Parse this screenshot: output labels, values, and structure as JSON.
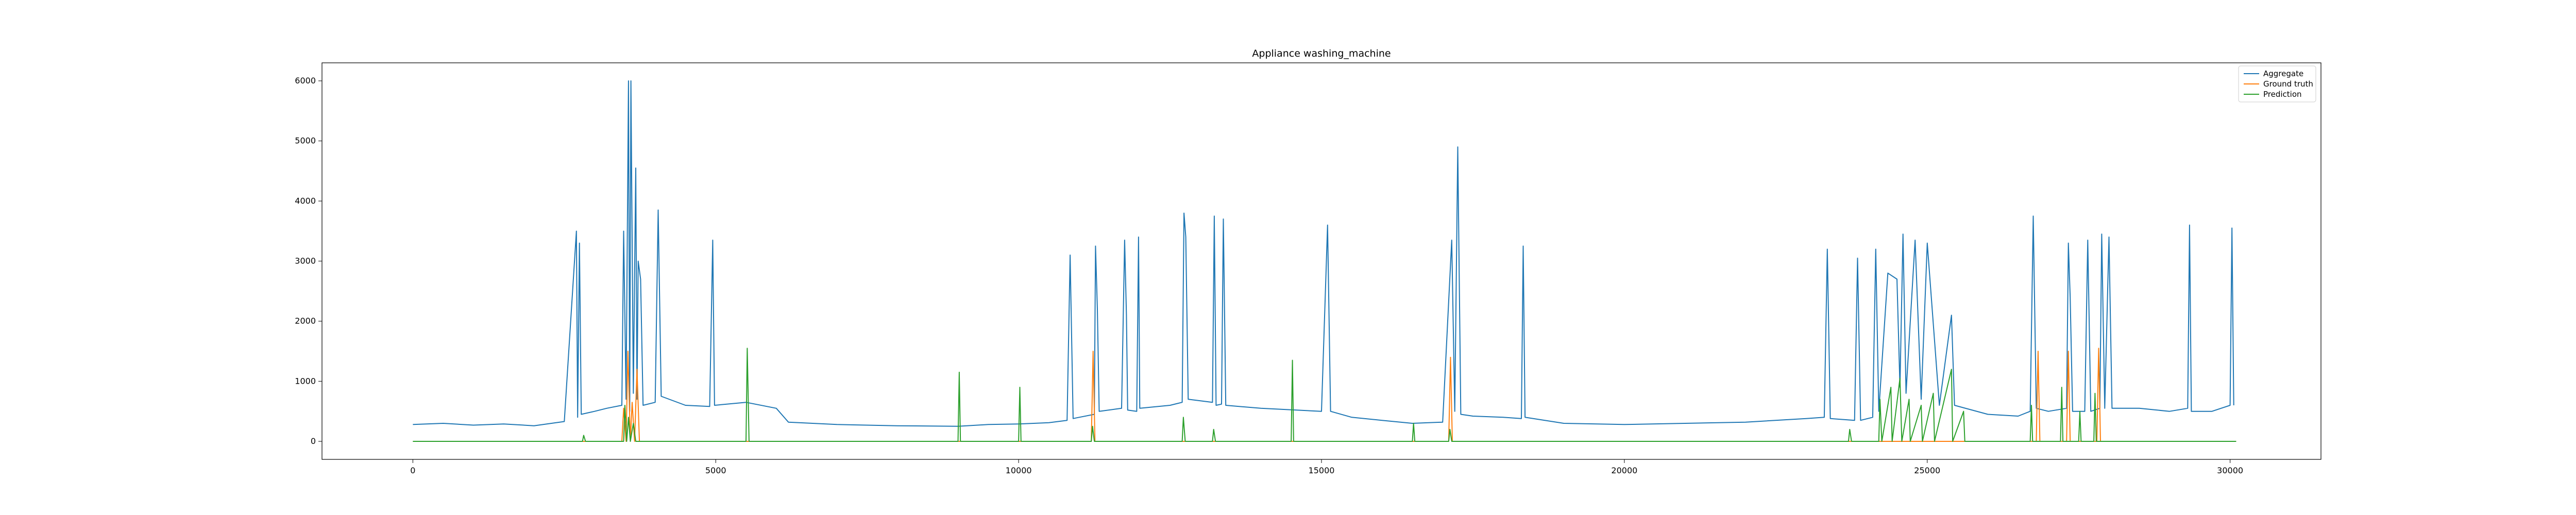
{
  "chart_data": {
    "type": "line",
    "title": "Appliance washing_machine",
    "xlabel": "",
    "ylabel": "",
    "xlim": [
      -1500,
      31500
    ],
    "ylim": [
      -300,
      6300
    ],
    "x_ticks": [
      0,
      5000,
      10000,
      15000,
      20000,
      25000,
      30000
    ],
    "x_tick_labels": [
      "0",
      "5000",
      "10000",
      "15000",
      "20000",
      "25000",
      "30000"
    ],
    "y_ticks": [
      0,
      1000,
      2000,
      3000,
      4000,
      5000,
      6000
    ],
    "y_tick_labels": [
      "0",
      "1000",
      "2000",
      "3000",
      "4000",
      "5000",
      "6000"
    ],
    "grid": false,
    "legend_position": "top-right",
    "series": [
      {
        "name": "Aggregate",
        "color": "#1f77b4",
        "points": [
          [
            0,
            280
          ],
          [
            500,
            300
          ],
          [
            1000,
            270
          ],
          [
            1500,
            290
          ],
          [
            2000,
            260
          ],
          [
            2500,
            330
          ],
          [
            2700,
            3500
          ],
          [
            2720,
            400
          ],
          [
            2750,
            3300
          ],
          [
            2780,
            450
          ],
          [
            3000,
            500
          ],
          [
            3200,
            550
          ],
          [
            3450,
            600
          ],
          [
            3480,
            3500
          ],
          [
            3520,
            700
          ],
          [
            3560,
            6000
          ],
          [
            3580,
            500
          ],
          [
            3600,
            6000
          ],
          [
            3640,
            800
          ],
          [
            3680,
            4550
          ],
          [
            3700,
            700
          ],
          [
            3720,
            3000
          ],
          [
            3760,
            2700
          ],
          [
            3800,
            600
          ],
          [
            4000,
            650
          ],
          [
            4050,
            3850
          ],
          [
            4100,
            750
          ],
          [
            4500,
            600
          ],
          [
            4900,
            580
          ],
          [
            4950,
            3350
          ],
          [
            4980,
            600
          ],
          [
            5500,
            650
          ],
          [
            6000,
            550
          ],
          [
            6200,
            320
          ],
          [
            7000,
            280
          ],
          [
            8000,
            260
          ],
          [
            9000,
            250
          ],
          [
            9500,
            280
          ],
          [
            10000,
            290
          ],
          [
            10500,
            310
          ],
          [
            10800,
            350
          ],
          [
            10850,
            3100
          ],
          [
            10900,
            380
          ],
          [
            11000,
            400
          ],
          [
            11250,
            450
          ],
          [
            11270,
            3250
          ],
          [
            11300,
            2200
          ],
          [
            11330,
            500
          ],
          [
            11700,
            550
          ],
          [
            11750,
            3350
          ],
          [
            11780,
            2100
          ],
          [
            11800,
            520
          ],
          [
            11950,
            500
          ],
          [
            11980,
            3400
          ],
          [
            12000,
            550
          ],
          [
            12500,
            600
          ],
          [
            12700,
            650
          ],
          [
            12730,
            3800
          ],
          [
            12760,
            3400
          ],
          [
            12800,
            700
          ],
          [
            13200,
            650
          ],
          [
            13230,
            3750
          ],
          [
            13260,
            600
          ],
          [
            13350,
            620
          ],
          [
            13380,
            3700
          ],
          [
            13420,
            600
          ],
          [
            14000,
            550
          ],
          [
            15000,
            500
          ],
          [
            15100,
            3600
          ],
          [
            15150,
            500
          ],
          [
            15500,
            400
          ],
          [
            16000,
            350
          ],
          [
            16500,
            300
          ],
          [
            17000,
            320
          ],
          [
            17150,
            3350
          ],
          [
            17200,
            500
          ],
          [
            17250,
            4900
          ],
          [
            17300,
            450
          ],
          [
            17500,
            420
          ],
          [
            18000,
            400
          ],
          [
            18300,
            380
          ],
          [
            18330,
            3250
          ],
          [
            18360,
            400
          ],
          [
            19000,
            300
          ],
          [
            20000,
            280
          ],
          [
            21000,
            300
          ],
          [
            22000,
            320
          ],
          [
            23000,
            380
          ],
          [
            23300,
            400
          ],
          [
            23350,
            3200
          ],
          [
            23400,
            380
          ],
          [
            23800,
            350
          ],
          [
            23850,
            3050
          ],
          [
            23900,
            350
          ],
          [
            24100,
            400
          ],
          [
            24150,
            3200
          ],
          [
            24200,
            500
          ],
          [
            24350,
            2800
          ],
          [
            24500,
            2700
          ],
          [
            24550,
            900
          ],
          [
            24600,
            3450
          ],
          [
            24650,
            800
          ],
          [
            24800,
            3350
          ],
          [
            24900,
            700
          ],
          [
            25000,
            3300
          ],
          [
            25200,
            600
          ],
          [
            25400,
            2100
          ],
          [
            25450,
            600
          ],
          [
            26000,
            450
          ],
          [
            26500,
            420
          ],
          [
            26700,
            500
          ],
          [
            26750,
            3750
          ],
          [
            26800,
            550
          ],
          [
            27000,
            500
          ],
          [
            27300,
            550
          ],
          [
            27330,
            3300
          ],
          [
            27360,
            2400
          ],
          [
            27400,
            500
          ],
          [
            27600,
            500
          ],
          [
            27650,
            3350
          ],
          [
            27700,
            500
          ],
          [
            27850,
            550
          ],
          [
            27880,
            3450
          ],
          [
            27930,
            550
          ],
          [
            28000,
            3400
          ],
          [
            28050,
            550
          ],
          [
            28500,
            550
          ],
          [
            29000,
            500
          ],
          [
            29300,
            550
          ],
          [
            29330,
            3600
          ],
          [
            29360,
            500
          ],
          [
            29700,
            500
          ],
          [
            30000,
            600
          ],
          [
            30030,
            3550
          ],
          [
            30060,
            600
          ]
        ]
      },
      {
        "name": "Ground truth",
        "color": "#ff7f0e",
        "points": [
          [
            0,
            0
          ],
          [
            3450,
            0
          ],
          [
            3480,
            550
          ],
          [
            3520,
            0
          ],
          [
            3550,
            1500
          ],
          [
            3590,
            0
          ],
          [
            3620,
            650
          ],
          [
            3660,
            0
          ],
          [
            3700,
            1200
          ],
          [
            3740,
            0
          ],
          [
            11200,
            0
          ],
          [
            11230,
            1500
          ],
          [
            11260,
            0
          ],
          [
            17100,
            0
          ],
          [
            17130,
            1400
          ],
          [
            17160,
            0
          ],
          [
            26800,
            0
          ],
          [
            26830,
            1500
          ],
          [
            26860,
            0
          ],
          [
            27300,
            0
          ],
          [
            27330,
            1500
          ],
          [
            27360,
            0
          ],
          [
            27800,
            0
          ],
          [
            27830,
            1550
          ],
          [
            27860,
            0
          ],
          [
            30100,
            0
          ]
        ]
      },
      {
        "name": "Prediction",
        "color": "#2ca02c",
        "points": [
          [
            0,
            0
          ],
          [
            2800,
            0
          ],
          [
            2820,
            100
          ],
          [
            2850,
            0
          ],
          [
            3480,
            0
          ],
          [
            3500,
            600
          ],
          [
            3530,
            0
          ],
          [
            3560,
            400
          ],
          [
            3590,
            0
          ],
          [
            3640,
            300
          ],
          [
            3680,
            0
          ],
          [
            5500,
            0
          ],
          [
            5520,
            1550
          ],
          [
            5550,
            0
          ],
          [
            9000,
            0
          ],
          [
            9020,
            1150
          ],
          [
            9040,
            0
          ],
          [
            10000,
            0
          ],
          [
            10020,
            900
          ],
          [
            10040,
            0
          ],
          [
            11200,
            0
          ],
          [
            11220,
            250
          ],
          [
            11250,
            0
          ],
          [
            12700,
            0
          ],
          [
            12720,
            400
          ],
          [
            12750,
            0
          ],
          [
            13200,
            0
          ],
          [
            13220,
            200
          ],
          [
            13250,
            0
          ],
          [
            14500,
            0
          ],
          [
            14520,
            1350
          ],
          [
            14540,
            0
          ],
          [
            16500,
            0
          ],
          [
            16520,
            300
          ],
          [
            16540,
            0
          ],
          [
            17100,
            0
          ],
          [
            17120,
            200
          ],
          [
            17150,
            0
          ],
          [
            23700,
            0
          ],
          [
            23720,
            200
          ],
          [
            23750,
            0
          ],
          [
            24200,
            0
          ],
          [
            24220,
            700
          ],
          [
            24250,
            0
          ],
          [
            24400,
            900
          ],
          [
            24420,
            0
          ],
          [
            24550,
            1050
          ],
          [
            24580,
            0
          ],
          [
            24700,
            700
          ],
          [
            24720,
            0
          ],
          [
            24900,
            600
          ],
          [
            24920,
            0
          ],
          [
            25100,
            800
          ],
          [
            25120,
            0
          ],
          [
            25400,
            1200
          ],
          [
            25420,
            0
          ],
          [
            25600,
            500
          ],
          [
            25620,
            0
          ],
          [
            26700,
            0
          ],
          [
            26720,
            600
          ],
          [
            26740,
            0
          ],
          [
            27200,
            0
          ],
          [
            27220,
            900
          ],
          [
            27240,
            0
          ],
          [
            27500,
            0
          ],
          [
            27520,
            500
          ],
          [
            27540,
            0
          ],
          [
            27750,
            0
          ],
          [
            27770,
            800
          ],
          [
            27790,
            0
          ],
          [
            30100,
            0
          ]
        ]
      }
    ]
  }
}
